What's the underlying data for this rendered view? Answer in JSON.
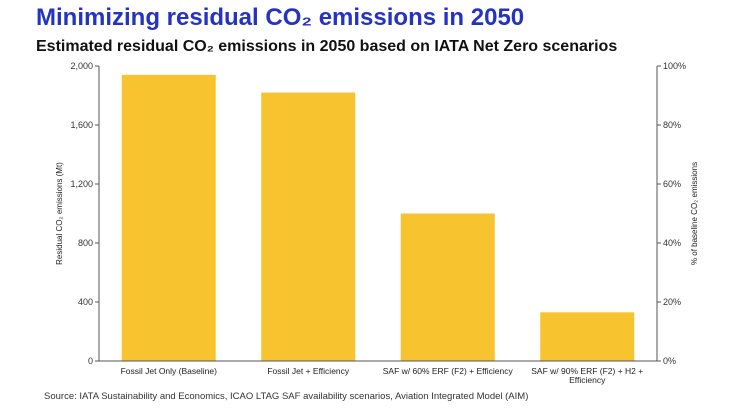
{
  "title": "Minimizing residual CO₂ emissions in 2050",
  "subtitle": "Estimated residual CO₂ emissions in 2050 based on IATA Net Zero scenarios",
  "source": "Source: IATA Sustainability and Economics, ICAO LTAG SAF availability scenarios, Aviation Integrated Model (AIM)",
  "chart_data": {
    "type": "bar",
    "categories": [
      "Fossil Jet Only (Baseline)",
      "Fossil Jet + Efficiency",
      "SAF w/ 60% ERF (F2) + Efficiency",
      "SAF w/ 90% ERF (F2) + H2 + Efficiency"
    ],
    "values": [
      1940,
      1820,
      1000,
      330
    ],
    "ylabel": "Residual CO₂ emissions (Mt)",
    "ylim": [
      0,
      2000
    ],
    "yticks": [
      0,
      400,
      800,
      1200,
      1600,
      2000
    ],
    "ytick_labels": [
      "0",
      "400",
      "800",
      "1,200",
      "1,600",
      "2,000"
    ],
    "y2label": "% of baseline CO₂ emissions",
    "y2lim": [
      0,
      100
    ],
    "y2ticks": [
      0,
      20,
      40,
      60,
      80,
      100
    ],
    "y2tick_labels": [
      "0%",
      "20%",
      "40%",
      "60%",
      "80%",
      "100%"
    ],
    "bar_color": "#f7c32e",
    "grid": false,
    "legend": "none"
  }
}
